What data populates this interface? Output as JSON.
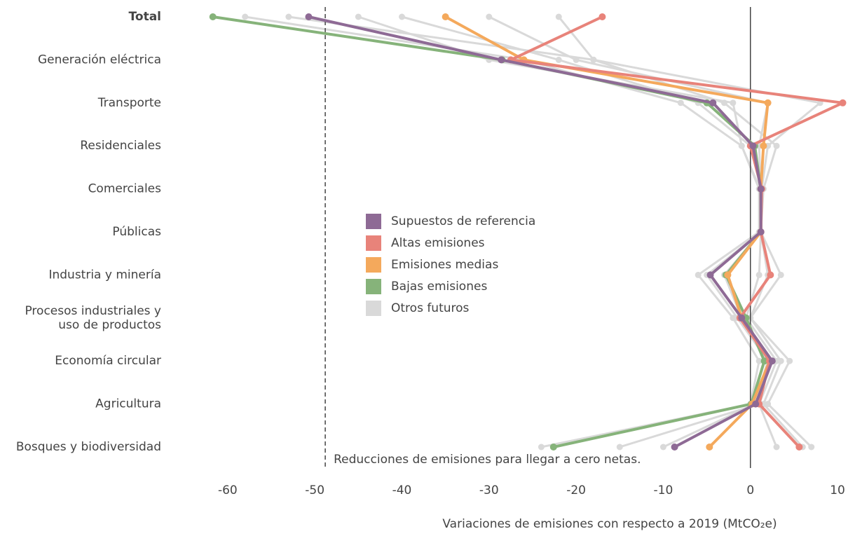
{
  "chart_data": {
    "type": "line",
    "categories": [
      "Total",
      "Generación eléctrica",
      "Transporte",
      "Residenciales",
      "Comerciales",
      "Públicas",
      "Industria y minería",
      "Procesos industriales y\nuso de productos",
      "Economía circular",
      "Agricultura",
      "Bosques y biodiversidad"
    ],
    "series": [
      {
        "name": "Supuestos de referencia",
        "color": "#8e6a95",
        "values": [
          -50.7,
          -28.6,
          -4.3,
          0.3,
          1.2,
          1.2,
          -4.6,
          -1.0,
          2.5,
          0.6,
          -8.7
        ]
      },
      {
        "name": "Altas emisiones",
        "color": "#e8837a",
        "values": [
          -17,
          -27.5,
          10.6,
          0,
          1.3,
          1.2,
          2.3,
          -1.2,
          2.2,
          1.0,
          5.6
        ]
      },
      {
        "name": "Emisiones medias",
        "color": "#f4a95c",
        "values": [
          -35,
          -26,
          2.0,
          1.5,
          1.2,
          1.2,
          -2.6,
          -1.0,
          2.2,
          0.2,
          -4.7
        ]
      },
      {
        "name": "Bajas emisiones",
        "color": "#86b37a",
        "values": [
          -61.7,
          -28.5,
          -5,
          0.5,
          1.2,
          1.2,
          -2.8,
          -0.5,
          1.6,
          0.1,
          -22.6
        ]
      }
    ],
    "others": {
      "name": "Otros futuros",
      "color": "#d9d9d9",
      "runs": [
        [
          -58,
          -26,
          -8,
          -1,
          1,
          1,
          -6,
          -2,
          1,
          0,
          -24
        ],
        [
          -53,
          -18,
          -3,
          3,
          1.5,
          1.2,
          3.5,
          0,
          4.5,
          2,
          7
        ],
        [
          -40,
          -22,
          -6,
          0,
          1.2,
          1.2,
          -3,
          -1,
          2,
          1,
          -15
        ],
        [
          -30,
          -20,
          2,
          1,
          1.2,
          1.2,
          1,
          -0.5,
          3,
          1,
          3
        ],
        [
          -22,
          -18,
          8,
          2,
          1.3,
          1.2,
          2,
          0,
          3.5,
          1.5,
          6
        ],
        [
          -45,
          -30,
          -2,
          -1,
          1.1,
          1.2,
          -5,
          -1.5,
          2,
          0.5,
          -10
        ]
      ]
    },
    "reference_line": {
      "value": -48.8,
      "label": "Reducciones de emisiones para llegar a cero netas."
    },
    "xlabel": "Variaciones de emisiones con respecto a 2019 (MtCO₂e)",
    "xlim": [
      -62,
      10.8
    ],
    "xticks": [
      -60,
      -50,
      -40,
      -30,
      -20,
      -10,
      0,
      10
    ],
    "zero_line": 0
  }
}
